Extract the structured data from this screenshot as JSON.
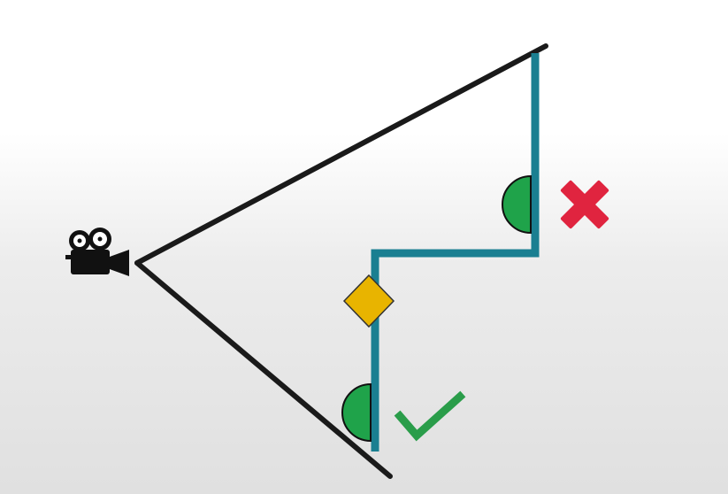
{
  "diagram": {
    "camera": {
      "icon": "movie-camera-icon"
    },
    "colors": {
      "view_lines": "#1a1a1a",
      "wall": "#1a7f91",
      "guard_fill": "#1fa34a",
      "guard_stroke": "#111111",
      "object_fill": "#e8b400",
      "object_stroke": "#333333",
      "cross": "#e0243f",
      "check": "#2a9d4a"
    },
    "markers": {
      "invisible_guard": {
        "icon": "cross-mark-icon"
      },
      "visible_guard": {
        "icon": "check-mark-icon"
      }
    }
  }
}
